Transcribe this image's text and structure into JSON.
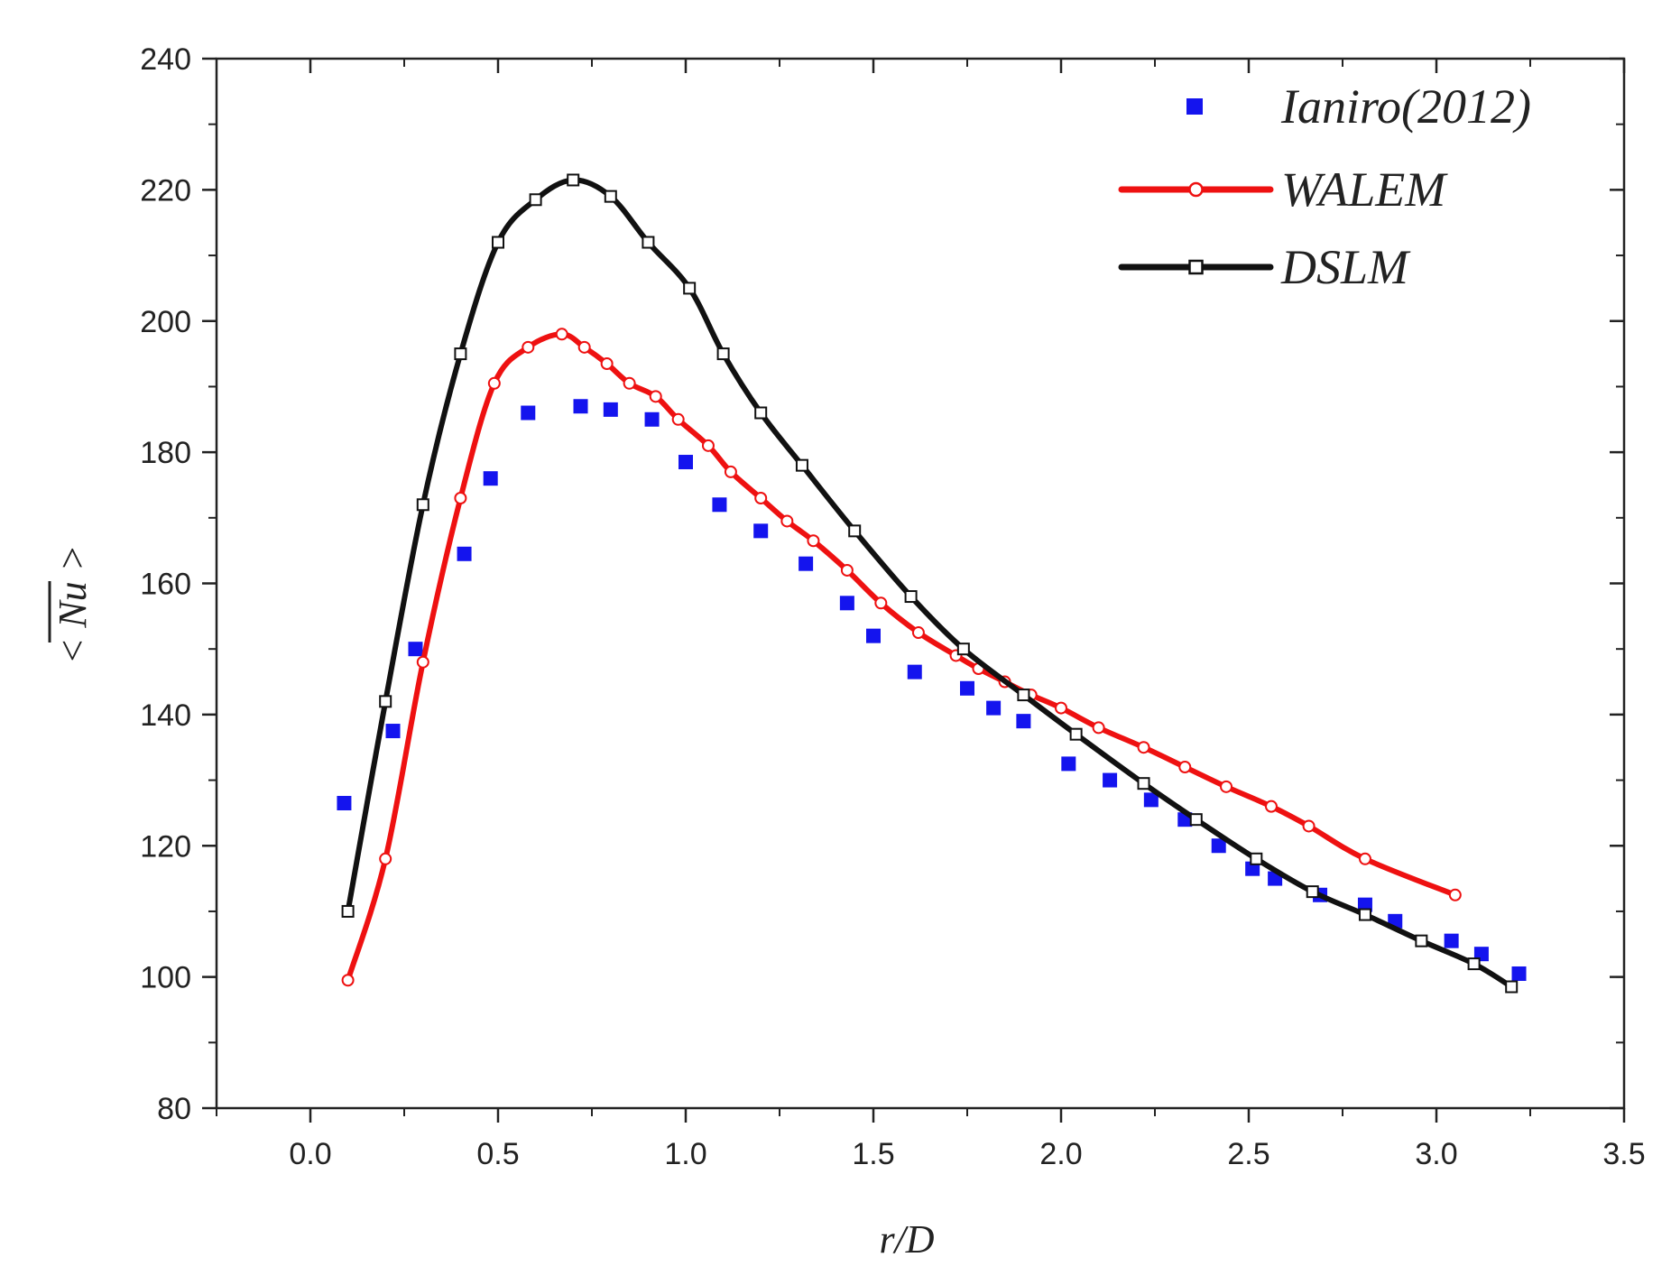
{
  "chart_data": {
    "type": "line",
    "title": "",
    "xlabel": "r/D",
    "ylabel": "< Nu >",
    "xlim": [
      -0.25,
      3.5
    ],
    "ylim": [
      80,
      240
    ],
    "xticks": [
      "0.0",
      "0.5",
      "1.0",
      "1.5",
      "2.0",
      "2.5",
      "3.0",
      "3.5"
    ],
    "xtick_values": [
      0.0,
      0.5,
      1.0,
      1.5,
      2.0,
      2.5,
      3.0,
      3.5
    ],
    "yticks": [
      "80",
      "100",
      "120",
      "140",
      "160",
      "180",
      "200",
      "220",
      "240"
    ],
    "ytick_values": [
      80,
      100,
      120,
      140,
      160,
      180,
      200,
      220,
      240
    ],
    "grid": false,
    "legend_position": "top-right",
    "series": [
      {
        "name": "Ianiro(2012)",
        "style": "scatter-square",
        "color": "#1414ee",
        "x": [
          0.09,
          0.22,
          0.28,
          0.41,
          0.48,
          0.58,
          0.72,
          0.8,
          0.91,
          1.0,
          1.09,
          1.2,
          1.32,
          1.43,
          1.5,
          1.61,
          1.75,
          1.82,
          1.9,
          2.02,
          2.13,
          2.24,
          2.33,
          2.42,
          2.51,
          2.57,
          2.69,
          2.81,
          2.89,
          3.04,
          3.12,
          3.22
        ],
        "y": [
          126.5,
          137.5,
          150,
          164.5,
          176,
          186,
          187,
          186.5,
          185,
          178.5,
          172,
          168,
          163,
          157,
          152,
          146.5,
          144,
          141,
          139,
          132.5,
          130,
          127,
          124,
          120,
          116.5,
          115,
          112.5,
          111,
          108.5,
          105.5,
          103.5,
          100.5
        ]
      },
      {
        "name": "WALEM",
        "style": "line-circle",
        "color": "#ee1111",
        "x": [
          0.1,
          0.2,
          0.3,
          0.4,
          0.49,
          0.58,
          0.67,
          0.73,
          0.79,
          0.85,
          0.92,
          0.98,
          1.06,
          1.12,
          1.2,
          1.27,
          1.34,
          1.43,
          1.52,
          1.62,
          1.72,
          1.78,
          1.85,
          1.92,
          2.0,
          2.1,
          2.22,
          2.33,
          2.44,
          2.56,
          2.66,
          2.81,
          3.05
        ],
        "y": [
          99.5,
          118,
          148,
          173,
          190.5,
          196,
          198,
          196,
          193.5,
          190.5,
          188.5,
          185,
          181,
          177,
          173,
          169.5,
          166.5,
          162,
          157,
          152.5,
          149,
          147,
          145,
          143,
          141,
          138,
          135,
          132,
          129,
          126,
          123,
          118,
          112.5
        ]
      },
      {
        "name": "DSLM",
        "style": "line-square",
        "color": "#111111",
        "x": [
          0.1,
          0.2,
          0.3,
          0.4,
          0.5,
          0.6,
          0.7,
          0.8,
          0.9,
          1.01,
          1.1,
          1.2,
          1.31,
          1.45,
          1.6,
          1.74,
          1.9,
          2.04,
          2.22,
          2.36,
          2.52,
          2.67,
          2.81,
          2.96,
          3.1,
          3.2
        ],
        "y": [
          110,
          142,
          172,
          195,
          212,
          218.5,
          221.5,
          219,
          212,
          205,
          195,
          186,
          178,
          168,
          158,
          150,
          143,
          137,
          129.5,
          124,
          118,
          113,
          109.5,
          105.5,
          102,
          98.5
        ]
      }
    ]
  }
}
